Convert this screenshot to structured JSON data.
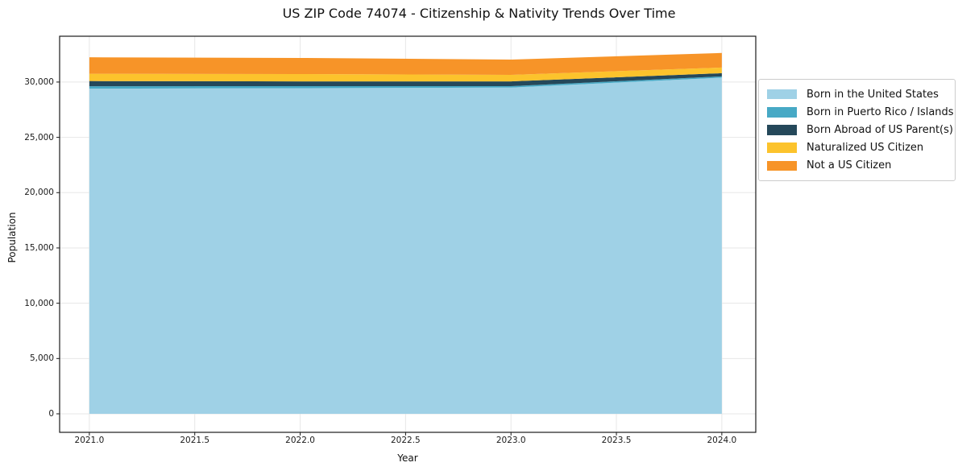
{
  "title": "US ZIP Code 74074 - Citizenship & Nativity Trends Over Time",
  "colors": {
    "background": "#ffffff",
    "axis": "#1a1a1a",
    "grid": "#e7e7e7",
    "legend_border": "#cccccc"
  },
  "chart_data": {
    "type": "area",
    "stacked": true,
    "title": "US ZIP Code 74074 - Citizenship & Nativity Trends Over Time",
    "xlabel": "Year",
    "ylabel": "Population",
    "x": [
      2021,
      2022,
      2023,
      2024
    ],
    "series": [
      {
        "name": "Born in the United States",
        "color": "#9fd1e6",
        "values": [
          29400,
          29450,
          29500,
          30400
        ]
      },
      {
        "name": "Born in Puerto Rico / Islands",
        "color": "#47a9c5",
        "values": [
          220,
          180,
          130,
          110
        ]
      },
      {
        "name": "Born Abroad of US Parent(s)",
        "color": "#25485a",
        "values": [
          470,
          430,
          430,
          290
        ]
      },
      {
        "name": "Naturalized US Citizen",
        "color": "#fcc32c",
        "values": [
          660,
          660,
          590,
          510
        ]
      },
      {
        "name": "Not a US Citizen",
        "color": "#f79428",
        "values": [
          1490,
          1460,
          1380,
          1320
        ]
      }
    ],
    "totals": [
      32240,
      32180,
      32030,
      32630
    ],
    "xticks": [
      2021.0,
      2021.5,
      2022.0,
      2022.5,
      2023.0,
      2023.5,
      2024.0
    ],
    "xtick_labels": [
      "2021.0",
      "2021.5",
      "2022.0",
      "2022.5",
      "2023.0",
      "2023.5",
      "2024.0"
    ],
    "yticks": [
      0,
      5000,
      10000,
      15000,
      20000,
      25000,
      30000
    ],
    "ytick_labels": [
      "0",
      "5,000",
      "10,000",
      "15,000",
      "20,000",
      "25,000",
      "30,000"
    ],
    "xlim": [
      2020.859,
      2024.161
    ],
    "ylim": [
      -1674,
      34143
    ],
    "grid": true,
    "legend_position": "right"
  }
}
